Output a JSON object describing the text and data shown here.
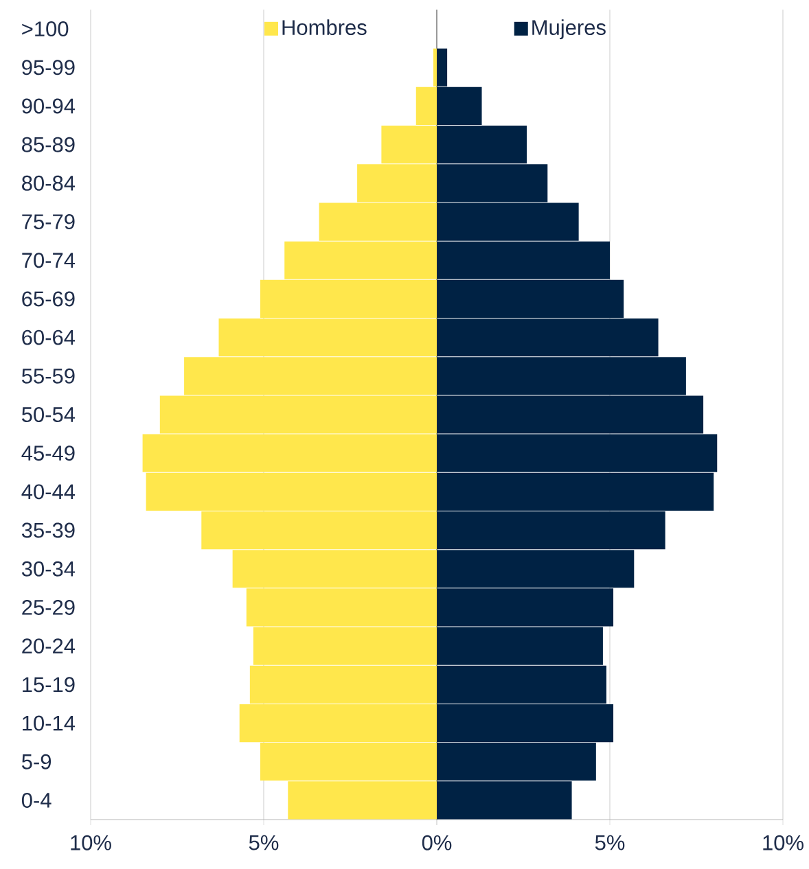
{
  "chart_data": {
    "type": "bar",
    "orientation": "horizontal",
    "categories": [
      ">100",
      "95-99",
      "90-94",
      "85-89",
      "80-84",
      "75-79",
      "70-74",
      "65-69",
      "60-64",
      "55-59",
      "50-54",
      "45-49",
      "40-44",
      "35-39",
      "30-34",
      "25-29",
      "20-24",
      "15-19",
      "10-14",
      "5-9",
      "0-4"
    ],
    "series": [
      {
        "name": "Hombres",
        "color": "#ffe74c",
        "values": [
          0,
          -0.1,
          -0.6,
          -1.6,
          -2.3,
          -3.4,
          -4.4,
          -5.1,
          -6.3,
          -7.3,
          -8.0,
          -8.5,
          -8.4,
          -6.8,
          -5.9,
          -5.5,
          -5.3,
          -5.4,
          -5.7,
          -5.1,
          -4.3
        ]
      },
      {
        "name": "Mujeres",
        "color": "#002244",
        "values": [
          0,
          0.3,
          1.3,
          2.6,
          3.2,
          4.1,
          5.0,
          5.4,
          6.4,
          7.2,
          7.7,
          8.1,
          8.0,
          6.6,
          5.7,
          5.1,
          4.8,
          4.9,
          5.1,
          4.6,
          3.9
        ]
      }
    ],
    "xlim": [
      -10,
      10
    ],
    "xticks": [
      {
        "value": -10,
        "label": "10%"
      },
      {
        "value": -5,
        "label": "5%"
      },
      {
        "value": 0,
        "label": "0%"
      },
      {
        "value": 5,
        "label": "5%"
      },
      {
        "value": 10,
        "label": "10%"
      }
    ],
    "stacked": true,
    "grid": "x",
    "legend": "top"
  }
}
